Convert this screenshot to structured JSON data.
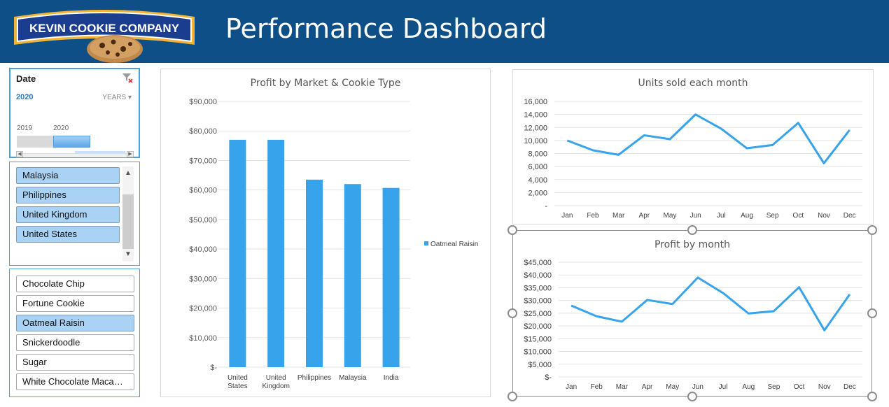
{
  "header": {
    "logo_text": "KEVIN COOKIE COMPANY",
    "title": "Performance Dashboard",
    "background": "#0d4f86"
  },
  "date_slicer": {
    "header": "Date",
    "selected_label": "2020",
    "level": "YEARS",
    "timeline": [
      "2019",
      "2020"
    ],
    "selected_year": "2020",
    "filter_icon": "clear-filter-icon"
  },
  "market_slicer": {
    "items": [
      {
        "label": "Malaysia",
        "selected": true
      },
      {
        "label": "Philippines",
        "selected": true
      },
      {
        "label": "United Kingdom",
        "selected": true
      },
      {
        "label": "United States",
        "selected": true
      }
    ]
  },
  "cookie_slicer": {
    "items": [
      {
        "label": "Chocolate Chip",
        "selected": false
      },
      {
        "label": "Fortune Cookie",
        "selected": false
      },
      {
        "label": "Oatmeal Raisin",
        "selected": true
      },
      {
        "label": "Snickerdoodle",
        "selected": false
      },
      {
        "label": "Sugar",
        "selected": false
      },
      {
        "label": "White Chocolate Maca…",
        "selected": false
      }
    ]
  },
  "colors": {
    "series": "#36a3ea",
    "selected_item": "#a9d2f5",
    "slicer_border": "#4aa0d8"
  },
  "chart_data": [
    {
      "type": "bar",
      "title": "Profit by Market & Cookie Type",
      "categories": [
        "United States",
        "United Kingdom",
        "Philippines",
        "Malaysia",
        "India"
      ],
      "category_lines": [
        [
          "United",
          "States"
        ],
        [
          "United",
          "Kingdom"
        ],
        [
          "Philippines"
        ],
        [
          "Malaysia"
        ],
        [
          "India"
        ]
      ],
      "series": [
        {
          "name": "Oatmeal Raisin",
          "values": [
            77000,
            77000,
            63500,
            62000,
            60700
          ]
        }
      ],
      "ylim": [
        0,
        90000
      ],
      "yticks": [
        0,
        10000,
        20000,
        30000,
        40000,
        50000,
        60000,
        70000,
        80000,
        90000
      ],
      "ytick_labels": [
        "$-",
        "$10,000",
        "$20,000",
        "$30,000",
        "$40,000",
        "$50,000",
        "$60,000",
        "$70,000",
        "$80,000",
        "$90,000"
      ],
      "grid": true,
      "legend": "right"
    },
    {
      "type": "line",
      "title": "Units sold each month",
      "x": [
        "Jan",
        "Feb",
        "Mar",
        "Apr",
        "May",
        "Jun",
        "Jul",
        "Aug",
        "Sep",
        "Oct",
        "Nov",
        "Dec"
      ],
      "series": [
        {
          "values": [
            10000,
            8500,
            7800,
            10800,
            10200,
            14000,
            11800,
            8800,
            9300,
            12700,
            6500,
            11600
          ]
        }
      ],
      "ylim": [
        0,
        16000
      ],
      "yticks": [
        0,
        2000,
        4000,
        6000,
        8000,
        10000,
        12000,
        14000,
        16000
      ],
      "ytick_labels": [
        "-",
        "2,000",
        "4,000",
        "6,000",
        "8,000",
        "10,000",
        "12,000",
        "14,000",
        "16,000"
      ],
      "grid": true
    },
    {
      "type": "line",
      "title": "Profit by month",
      "x": [
        "Jan",
        "Feb",
        "Mar",
        "Apr",
        "May",
        "Jun",
        "Jul",
        "Aug",
        "Sep",
        "Oct",
        "Nov",
        "Dec"
      ],
      "series": [
        {
          "values": [
            28000,
            23800,
            21700,
            30200,
            28600,
            39000,
            32900,
            24900,
            25800,
            35200,
            18300,
            32400
          ]
        }
      ],
      "ylim": [
        0,
        45000
      ],
      "yticks": [
        0,
        5000,
        10000,
        15000,
        20000,
        25000,
        30000,
        35000,
        40000,
        45000
      ],
      "ytick_labels": [
        "$-",
        "$5,000",
        "$10,000",
        "$15,000",
        "$20,000",
        "$25,000",
        "$30,000",
        "$35,000",
        "$40,000",
        "$45,000"
      ],
      "grid": true
    }
  ]
}
